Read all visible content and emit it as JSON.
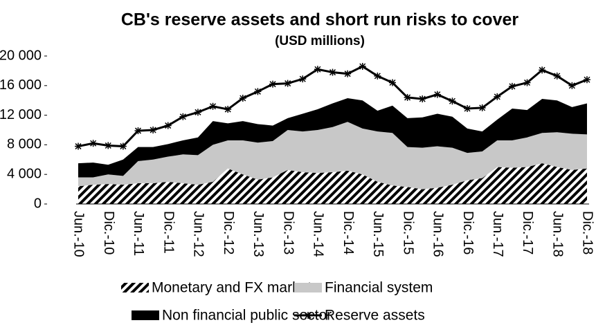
{
  "chart_data": {
    "type": "area",
    "title": "CB's reserve assets and short run risks to cover",
    "subtitle": "(USD millions)",
    "categories": [
      "Jun.-10",
      null,
      "Dic.-10",
      null,
      "Jun.-11",
      null,
      "Dic.-11",
      null,
      "Jun.-12",
      null,
      "Dic.-12",
      null,
      "Jun.-13",
      null,
      "Dic.-13",
      null,
      "Jun.-14",
      null,
      "Dic.-14",
      null,
      "Jun.-15",
      null,
      "Dic.-15",
      null,
      "Jun.-16",
      null,
      "Dic.-16",
      null,
      "Jun.-17",
      null,
      "Dic.-17",
      null,
      "Jun.-18",
      null,
      "Dic.-18"
    ],
    "stacked": true,
    "series": [
      {
        "name": "Monetary and FX markets",
        "color": "#000000",
        "pattern": "hatch",
        "type": "area",
        "values": [
          2400,
          2600,
          2700,
          2600,
          2800,
          2800,
          3000,
          2800,
          2600,
          3000,
          4800,
          4000,
          3300,
          3600,
          4600,
          4300,
          4200,
          4300,
          4500,
          4000,
          3000,
          2500,
          2300,
          2000,
          2200,
          2600,
          3200,
          3500,
          5000,
          4900,
          5000,
          5500,
          5000,
          4600,
          4800
        ]
      },
      {
        "name": "Financial system",
        "color": "#c8c8c8",
        "type": "area",
        "values": [
          1200,
          1000,
          1300,
          1200,
          3000,
          3200,
          3400,
          3900,
          4000,
          5000,
          3800,
          4600,
          5000,
          4900,
          5400,
          5500,
          5800,
          6100,
          6600,
          6200,
          6800,
          7100,
          5400,
          5600,
          5600,
          5000,
          3700,
          3600,
          3600,
          3700,
          4000,
          4100,
          4700,
          4900,
          4600
        ]
      },
      {
        "name": "Non financial public sector",
        "color": "#000000",
        "type": "area",
        "values": [
          1900,
          2000,
          1300,
          2200,
          1900,
          1700,
          1700,
          1900,
          2400,
          3200,
          2300,
          2600,
          2500,
          2100,
          1600,
          2400,
          2800,
          3200,
          3200,
          3800,
          2800,
          3700,
          3900,
          4100,
          4400,
          4200,
          3300,
          2700,
          2800,
          4300,
          3700,
          4600,
          4300,
          3600,
          4200
        ]
      },
      {
        "name": "Reserve assets",
        "color": "#000000",
        "type": "line",
        "marker": "asterisk",
        "values": [
          7800,
          8200,
          7900,
          7800,
          9900,
          10000,
          10600,
          11800,
          12400,
          13200,
          12800,
          14300,
          15200,
          16200,
          16300,
          16900,
          18200,
          17800,
          17600,
          18600,
          17300,
          16400,
          14400,
          14200,
          14800,
          13900,
          12900,
          13000,
          14500,
          15900,
          16400,
          18100,
          17300,
          16000,
          16800
        ]
      }
    ],
    "ylim": [
      0,
      20000
    ],
    "yticks": [
      0,
      {
        "value": 4000,
        "label": "4 000"
      },
      {
        "value": 8000,
        "label": "8 000"
      },
      {
        "value": 12000,
        "label": "12 000"
      },
      {
        "value": 16000,
        "label": "16 000"
      },
      {
        "value": 20000,
        "label": "20 000"
      }
    ],
    "grid": false,
    "legend": "bottom"
  }
}
